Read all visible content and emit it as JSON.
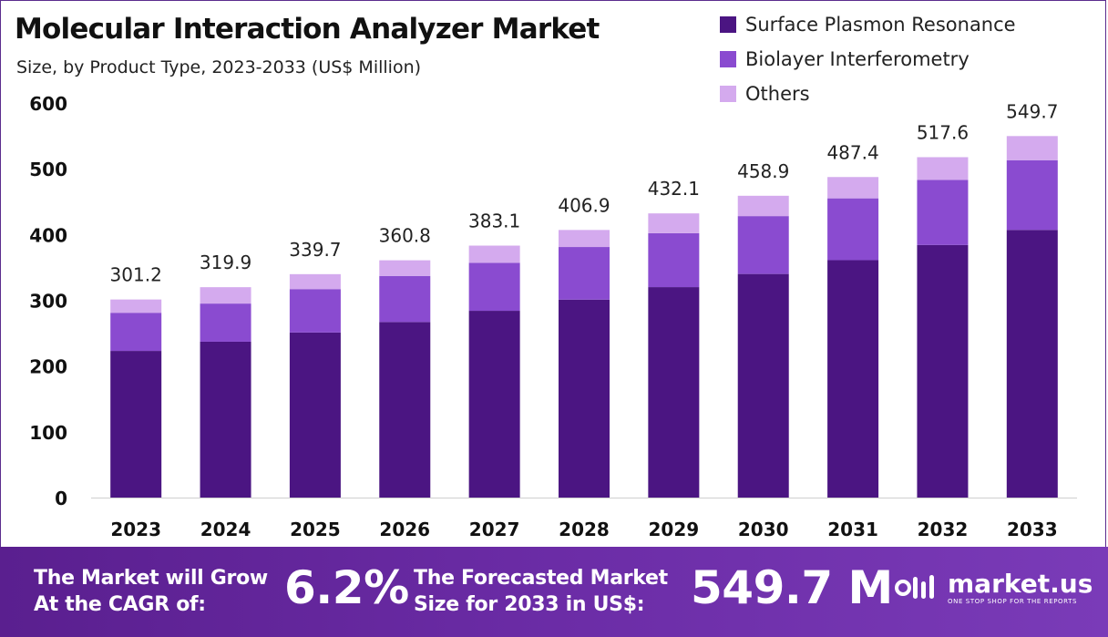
{
  "header": {
    "title": "Molecular Interaction Analyzer Market",
    "subtitle": "Size, by Product Type, 2023-2033 (US$ Million)"
  },
  "colors": {
    "series": [
      "#4b1582",
      "#8a4bd0",
      "#d4aaee"
    ],
    "axis_text": "#111111",
    "footer_start": "#5a1f8f",
    "footer_end": "#7a3bb8"
  },
  "chart_data": {
    "type": "bar",
    "stacked": true,
    "categories": [
      "2023",
      "2024",
      "2025",
      "2026",
      "2027",
      "2028",
      "2029",
      "2030",
      "2031",
      "2032",
      "2033"
    ],
    "series": [
      {
        "name": "Surface Plasmon Resonance",
        "values": [
          223,
          237,
          251,
          267,
          284,
          301,
          320,
          340,
          361,
          384,
          407
        ]
      },
      {
        "name": "Biolayer Interferometry",
        "values": [
          58,
          58,
          66,
          70,
          73,
          80,
          82,
          88,
          94,
          99,
          106
        ]
      },
      {
        "name": "Others",
        "values": [
          20.2,
          24.9,
          22.7,
          23.8,
          26.1,
          25.9,
          30.1,
          30.9,
          32.4,
          34.6,
          36.7
        ]
      }
    ],
    "totals": [
      "301.2",
      "319.9",
      "339.7",
      "360.8",
      "383.1",
      "406.9",
      "432.1",
      "458.9",
      "487.4",
      "517.6",
      "549.7"
    ],
    "yticks": [
      "0",
      "100",
      "200",
      "300",
      "400",
      "500",
      "600"
    ],
    "ylim": [
      0,
      600
    ],
    "grid": false,
    "legend_position": "top-right"
  },
  "footer": {
    "cagr_line1": "The Market will Grow",
    "cagr_line2": "At the CAGR of:",
    "cagr_value": "6.2%",
    "forecast_line1": "The Forecasted Market",
    "forecast_line2": "Size for 2033 in US$:",
    "forecast_value": "549.7 M",
    "brand_name": "market.us",
    "brand_tagline": "ONE STOP SHOP FOR THE REPORTS",
    "brand_icon": "market-us-logo-icon"
  }
}
